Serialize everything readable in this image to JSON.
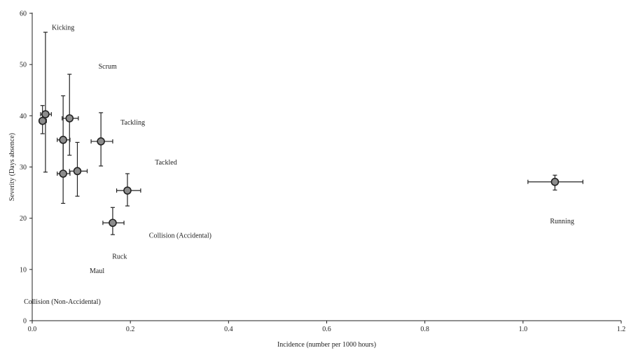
{
  "chart_data": {
    "type": "scatter",
    "title": "",
    "xlabel": "Incidence (number per 1000 hours)",
    "ylabel": "Severity (Days absence)",
    "xlim": [
      0,
      1.2
    ],
    "ylim": [
      0,
      60
    ],
    "xticks": [
      "0.0",
      "0.2",
      "0.4",
      "0.6",
      "0.8",
      "1.0",
      "1.2"
    ],
    "yticks": [
      "0",
      "10",
      "20",
      "30",
      "40",
      "50",
      "60"
    ],
    "grid": false,
    "legend": "none",
    "marker_color": "#8c8c8c",
    "marker_edge_color": "#222222",
    "points": [
      {
        "x": 0.027,
        "y": 40.3,
        "xerr": [
          0.01,
          0.012
        ],
        "yerr": [
          11.3,
          16.0
        ]
      },
      {
        "x": 0.021,
        "y": 39.0,
        "xerr": [
          0.006,
          0.008
        ],
        "yerr": [
          2.5,
          3.0
        ]
      },
      {
        "x": 0.076,
        "y": 39.5,
        "xerr": [
          0.015,
          0.018
        ],
        "yerr": [
          7.2,
          8.6
        ]
      },
      {
        "x": 0.063,
        "y": 35.3,
        "xerr": [
          0.012,
          0.014
        ],
        "yerr": [
          6.6,
          8.6
        ]
      },
      {
        "x": 0.14,
        "y": 35.0,
        "xerr": [
          0.02,
          0.024
        ],
        "yerr": [
          4.8,
          5.6
        ]
      },
      {
        "x": 0.063,
        "y": 28.7,
        "xerr": [
          0.012,
          0.014
        ],
        "yerr": [
          5.8,
          6.6
        ]
      },
      {
        "x": 0.092,
        "y": 29.2,
        "xerr": [
          0.016,
          0.02
        ],
        "yerr": [
          4.9,
          5.6
        ]
      },
      {
        "x": 0.194,
        "y": 25.4,
        "xerr": [
          0.022,
          0.027
        ],
        "yerr": [
          3.0,
          3.3
        ]
      },
      {
        "x": 0.164,
        "y": 19.1,
        "xerr": [
          0.02,
          0.023
        ],
        "yerr": [
          2.3,
          3.0
        ]
      },
      {
        "x": 1.065,
        "y": 27.1,
        "xerr": [
          0.055,
          0.057
        ],
        "yerr": [
          1.6,
          1.3
        ]
      }
    ],
    "annotations": [
      {
        "text": "Kicking",
        "x": 0.04,
        "y": 56.8
      },
      {
        "text": "Scrum",
        "x": 0.135,
        "y": 49.2
      },
      {
        "text": "Tackling",
        "x": 0.18,
        "y": 38.3
      },
      {
        "text": "Tackled",
        "x": 0.25,
        "y": 30.5
      },
      {
        "text": "Collision (Accidental)",
        "x": 0.238,
        "y": 16.2
      },
      {
        "text": "Ruck",
        "x": 0.163,
        "y": 12.1
      },
      {
        "text": "Maul",
        "x": 0.117,
        "y": 9.3
      },
      {
        "text": "Collision (Non-Accidental)",
        "x": -0.017,
        "y": 3.3
      },
      {
        "text": "Running",
        "x": 1.055,
        "y": 19.0
      }
    ]
  }
}
